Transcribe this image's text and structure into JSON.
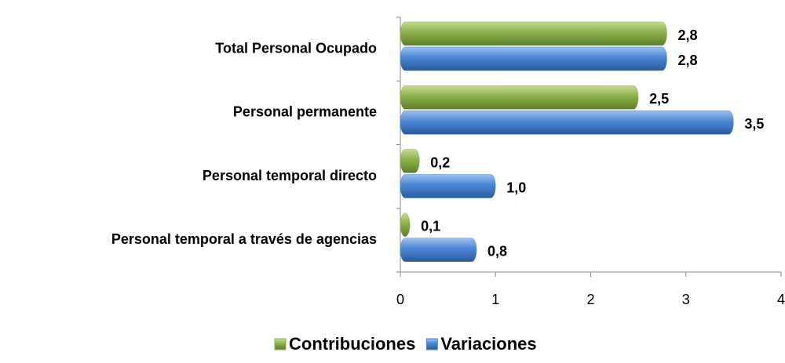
{
  "chart_data": {
    "type": "bar",
    "orientation": "horizontal",
    "categories": [
      "Total Personal Ocupado",
      "Personal permanente",
      "Personal temporal directo",
      "Personal temporal a través de  agencias"
    ],
    "series": [
      {
        "name": "Contribuciones",
        "color": "#8cb04a",
        "values": [
          2.8,
          2.5,
          0.2,
          0.1
        ],
        "value_labels": [
          "2,8",
          "2,5",
          "0,2",
          "0,1"
        ]
      },
      {
        "name": "Variaciones",
        "color": "#4a86d4",
        "values": [
          2.8,
          3.5,
          1.0,
          0.8
        ],
        "value_labels": [
          "2,8",
          "3,5",
          "1,0",
          "0,8"
        ]
      }
    ],
    "xlim": [
      0,
      4
    ],
    "xticks": [
      0,
      1,
      2,
      3,
      4
    ],
    "legend": "bottom"
  }
}
